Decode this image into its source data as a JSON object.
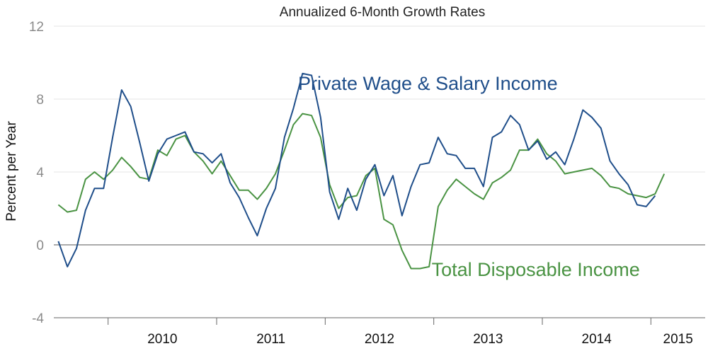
{
  "chart_data": {
    "type": "line",
    "title": "Annualized 6-Month Growth Rates",
    "ylabel": "Percent per Year",
    "xlabel": "",
    "ylim": [
      -4,
      12
    ],
    "yticks": [
      -4,
      0,
      4,
      8,
      12
    ],
    "ytick_labels": [
      "-4",
      "0",
      "4",
      "8",
      "12"
    ],
    "xlim": [
      2009.5,
      2015.5
    ],
    "year_labels": [
      "2010",
      "2011",
      "2012",
      "2013",
      "2014",
      "2015"
    ],
    "year_boundaries": [
      2010,
      2011,
      2012,
      2013,
      2014,
      2015
    ],
    "grid": true,
    "colors": {
      "grid": "#e6e6e6",
      "zero_line": "#555555",
      "axis": "#666666"
    },
    "series": [
      {
        "name": "Private Wage & Salary Income",
        "color": "#1f4e8a",
        "x_start": 2009.542,
        "x_step": 0.0833,
        "values": [
          0.2,
          -1.2,
          -0.2,
          1.9,
          3.1,
          3.1,
          5.9,
          8.5,
          7.6,
          5.6,
          3.5,
          5.0,
          5.8,
          6.0,
          6.2,
          5.1,
          5.0,
          4.5,
          5.0,
          3.4,
          2.6,
          1.5,
          0.5,
          2.0,
          3.1,
          5.9,
          7.5,
          9.4,
          9.3,
          7.0,
          2.9,
          1.4,
          3.1,
          1.9,
          3.6,
          4.4,
          2.7,
          3.8,
          1.6,
          3.2,
          4.4,
          4.5,
          5.9,
          5.0,
          4.9,
          4.2,
          4.2,
          3.2,
          5.9,
          6.2,
          7.1,
          6.6,
          5.2,
          5.7,
          4.7,
          5.1,
          4.4,
          5.8,
          7.4,
          7.0,
          6.4,
          4.6,
          3.9,
          3.3,
          2.2,
          2.1,
          2.7
        ]
      },
      {
        "name": "Total Disposable Income",
        "color": "#4a9343",
        "x_start": 2009.542,
        "x_step": 0.0833,
        "values": [
          2.2,
          1.8,
          1.9,
          3.6,
          4.0,
          3.6,
          4.1,
          4.8,
          4.3,
          3.7,
          3.6,
          5.2,
          4.9,
          5.8,
          6.0,
          5.1,
          4.6,
          3.9,
          4.6,
          3.8,
          3.0,
          3.0,
          2.5,
          3.1,
          3.9,
          5.2,
          6.6,
          7.2,
          7.1,
          5.9,
          3.3,
          2.0,
          2.6,
          2.7,
          3.8,
          4.2,
          1.4,
          1.1,
          -0.3,
          -1.3,
          -1.3,
          -1.2,
          2.1,
          3.0,
          3.6,
          3.2,
          2.8,
          2.5,
          3.4,
          3.7,
          4.1,
          5.2,
          5.2,
          5.8,
          5.0,
          4.6,
          3.9,
          4.0,
          4.1,
          4.2,
          3.8,
          3.2,
          3.1,
          2.8,
          2.7,
          2.6,
          2.8,
          3.9
        ]
      }
    ],
    "annotations": [
      {
        "text": "Private Wage & Salary Income",
        "series": 0,
        "at": [
          2011.75,
          8.5
        ]
      },
      {
        "text": "Total Disposable Income",
        "series": 1,
        "at": [
          2012.98,
          -1.7
        ]
      }
    ]
  }
}
